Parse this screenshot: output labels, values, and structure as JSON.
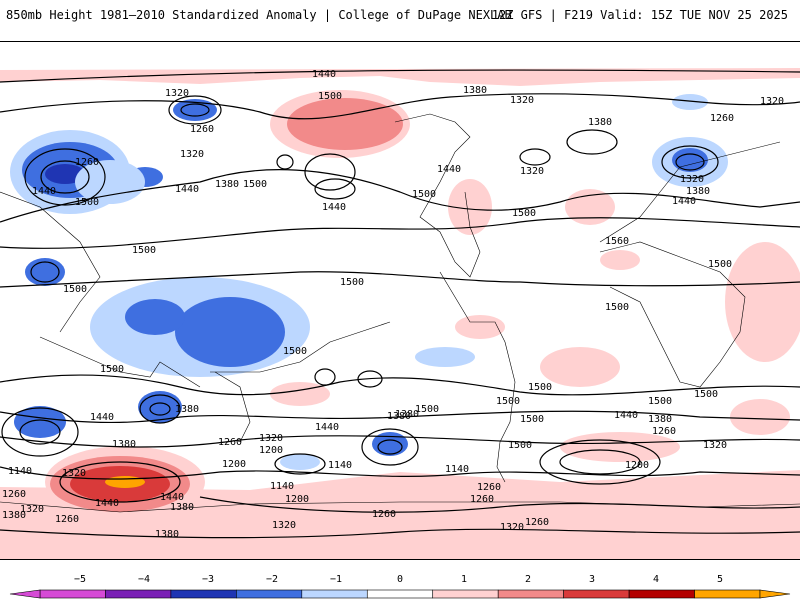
{
  "header": {
    "title": "850mb Height 1981–2010 Standardized Anomaly | College of DuPage NEXLAB",
    "run_info": "12Z GFS | F219 Valid: 15Z TUE NOV 25 2025"
  },
  "colorbar": {
    "ticks": [
      "−5",
      "−4",
      "−3",
      "−2",
      "−1",
      "0",
      "1",
      "2",
      "3",
      "4",
      "5"
    ],
    "colors": [
      "#d64ad6",
      "#7a1fb5",
      "#1f35b3",
      "#3f6fe0",
      "#bcd7ff",
      "#ffffff",
      "#ffd1d1",
      "#f28a8a",
      "#d93a3a",
      "#b30000",
      "#ffa500"
    ]
  },
  "map_labels": {
    "l1440_top": "1440",
    "l1500_pac": "1500",
    "l1380_ak": "1380",
    "l1320_nam": "1320",
    "l1320_ak": "1320",
    "l1380_gl": "1380",
    "l1320_eu": "1320",
    "l1320_sib": "1320",
    "l1260_sib": "1260",
    "l1320_asia": "1320",
    "l1260_asia": "1260",
    "l1260_w": "1260",
    "l1320_w": "1320",
    "l1380_w": "1380",
    "l1500_w": "1500",
    "l1440_w": "1440",
    "l1500_w2": "1500",
    "l1440_w3": "1440",
    "l1380_w4": "1380",
    "l1440_pac": "1440",
    "l1440_pac2": "1440",
    "l1500_pac2": "1500",
    "l1440_can": "1440",
    "l1500_can": "1500",
    "l1500_us": "1500",
    "l1500_atl": "1500",
    "l1560_af": "1560",
    "l1500_afr": "1500",
    "l1500_ind": "1500",
    "l1500_ind2": "1500",
    "l1500_w3": "1500",
    "l1500_w4": "1500",
    "l1500_sp": "1500",
    "l1500_eq": "1500",
    "l1500_sam": "1500",
    "l1500_sam2": "1500",
    "l1500_sa": "1500",
    "l1500_io": "1500",
    "l1500_ind3": "1500",
    "l1440_s1": "1440",
    "l1380_s1": "1380",
    "l1440_s2": "1440",
    "l1380_s2": "1380",
    "l1260_s2": "1260",
    "l1320_s2": "1320",
    "l1200_s2": "1200",
    "l1140_s2": "1140",
    "l1440_s3": "1440",
    "l1380_s3": "1380",
    "l1320_s3": "1320",
    "l1260_s3": "1260",
    "l1140_s3": "1140",
    "l1380_sp": "1380",
    "l1320_sp": "1320",
    "l1260_sp": "1260",
    "l1200_sp": "1200",
    "l1140_sp": "1140",
    "l1260_ant": "1260",
    "l1200_ant": "1200",
    "l1380_ant": "1380",
    "l1320_ant": "1320",
    "l1260_ant2": "1260",
    "l1140_w": "1140",
    "l1260_w2": "1260",
    "l1380_w5": "1380",
    "l1260_sa": "1260",
    "l1200_io": "1200",
    "l1140_ant": "1140",
    "l1440_ant2": "1440",
    "l1380_ant2": "1380",
    "l1320_ant2": "1320",
    "l1440_io": "1440",
    "l1380_io": "1380",
    "l1260_io": "1260",
    "l1320_io": "1320"
  }
}
